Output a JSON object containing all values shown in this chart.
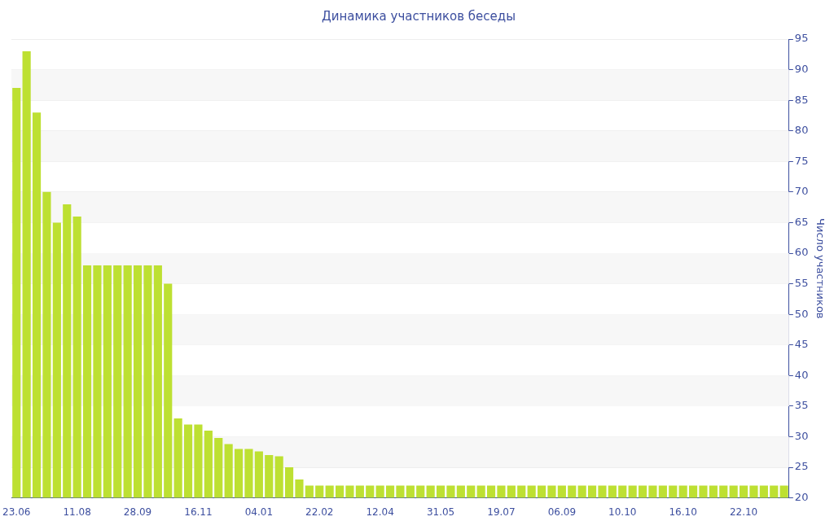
{
  "chart_data": {
    "type": "bar",
    "title": "Динамика участников беседы",
    "ylabel": "Число участников",
    "categories": [
      "23.06",
      null,
      null,
      null,
      null,
      null,
      "11.08",
      null,
      null,
      null,
      null,
      null,
      "28.09",
      null,
      null,
      null,
      null,
      null,
      "16.11",
      null,
      null,
      null,
      null,
      null,
      "04.01",
      null,
      null,
      null,
      null,
      null,
      "22.02",
      null,
      null,
      null,
      null,
      null,
      "12.04",
      null,
      null,
      null,
      null,
      null,
      "31.05",
      null,
      null,
      null,
      null,
      null,
      "19.07",
      null,
      null,
      null,
      null,
      null,
      "06.09",
      null,
      null,
      null,
      null,
      null,
      "10.10",
      null,
      null,
      null,
      null,
      null,
      "16.10",
      null,
      null,
      null,
      null,
      null,
      "22.10",
      null,
      null,
      null,
      null
    ],
    "values": [
      87,
      93,
      83,
      70,
      65,
      68,
      66,
      58,
      58,
      58,
      58,
      58,
      58,
      58,
      58,
      55,
      33,
      32,
      32,
      31,
      29.8,
      28.8,
      28,
      28,
      27.6,
      27,
      26.8,
      25,
      23,
      22,
      22,
      22,
      22,
      22,
      22,
      22,
      22,
      22,
      22,
      22,
      22,
      22,
      22,
      22,
      22,
      22,
      22,
      22,
      22,
      22,
      22,
      22,
      22,
      22,
      22,
      22,
      22,
      22,
      22,
      22,
      22,
      22,
      22,
      22,
      22,
      22,
      22,
      22,
      22,
      22,
      22,
      22,
      22,
      22,
      22,
      22,
      22
    ],
    "color": "#bde032",
    "ylim": [
      20,
      95
    ],
    "yticks": [
      20,
      25,
      30,
      35,
      40,
      45,
      50,
      55,
      60,
      65,
      70,
      75,
      80,
      85,
      90,
      95
    ],
    "grid": "y",
    "legend": false
  }
}
